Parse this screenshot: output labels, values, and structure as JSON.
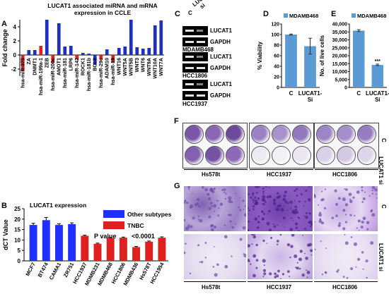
{
  "panels": {
    "A": "A",
    "B": "B",
    "C": "C",
    "D": "D",
    "E": "E",
    "F": "F",
    "G": "G"
  },
  "panelA": {
    "title_line1": "LUCAT1 associated miRNA and mRNA",
    "title_line2": "expression in CCLE",
    "ylabel": "Fold change",
    "chart_data": {
      "type": "bar",
      "ylim": [
        -3,
        5
      ],
      "yticks": [
        -2,
        0,
        2,
        4
      ],
      "categories": [
        "hsa-miR-375",
        "ZA",
        "DNMT1",
        "hsa-miR-199a-1",
        "ZEB",
        "hsa-miR-200c",
        "AMOT1",
        "hsa-miR-181",
        "LRP6",
        "hsa-miR-142",
        "ROCK1",
        "hsa-miR-181b",
        "BCL2",
        "hsa-miR-29c",
        "ADAM10",
        "hsa-miR-19",
        "WNT16",
        "WNT5A",
        "WNT5B",
        "WNT3",
        "WNT6",
        "WNT9A",
        "WNT10A",
        "WNT7A"
      ],
      "values": [
        -2.3,
        0.7,
        0.7,
        1.3,
        5.0,
        -1.1,
        4.5,
        1.2,
        1.3,
        -0.6,
        0.3,
        0.2,
        -1.4,
        -0.6,
        0.8,
        -1.1,
        1.0,
        1.2,
        5.0,
        1.1,
        0.9,
        1.0,
        4.2,
        4.9
      ],
      "colors": [
        "#e02020",
        "#1f2fbf",
        "#1f2fbf",
        "#e02020",
        "#1f2fbf",
        "#e02020",
        "#1f2fbf",
        "#1f2fbf",
        "#1f2fbf",
        "#e02020",
        "#1f2fbf",
        "#1f2fbf",
        "#1f2fbf",
        "#e02020",
        "#1f2fbf",
        "#e02020",
        "#1f2fbf",
        "#1f2fbf",
        "#1f2fbf",
        "#1f2fbf",
        "#1f2fbf",
        "#1f2fbf",
        "#1f2fbf",
        "#1f2fbf"
      ]
    }
  },
  "panelB": {
    "title": "LUCAT1 expression",
    "ylabel": "dCT Value",
    "annotation_p": "P value",
    "annotation_val": "<0.0001",
    "chart_data": {
      "type": "bar",
      "ylim": [
        0,
        25
      ],
      "yticks": [
        0,
        5,
        10,
        15,
        20,
        25
      ],
      "categories": [
        "MCF7",
        "BT474",
        "CAMA1",
        "ZR751",
        "HCC1937",
        "MDMB231",
        "MDMB468",
        "HCC1806",
        "MDMB436",
        "Hs578T",
        "HCC1954"
      ],
      "values": [
        17.2,
        19.5,
        17.2,
        17.6,
        12.0,
        8.2,
        10.9,
        11.1,
        6.6,
        9.2,
        11.1
      ],
      "errors": [
        0.8,
        1.3,
        0.6,
        0.6,
        0.3,
        0.3,
        0.3,
        0.3,
        0.3,
        0.3,
        0.4
      ],
      "colors": [
        "#1f2fff",
        "#1f2fff",
        "#1f2fff",
        "#1f2fff",
        "#e02020",
        "#e02020",
        "#e02020",
        "#e02020",
        "#e02020",
        "#e02020",
        "#e02020"
      ],
      "legend": [
        {
          "name": "Other subtypes",
          "color": "#1f2fff"
        },
        {
          "name": "TNBC",
          "color": "#e02020"
        }
      ]
    }
  },
  "panelC": {
    "col_c": "C",
    "col_si_1": "LUCAT1",
    "col_si_2": "si",
    "rows": [
      {
        "label": "LUCAT1"
      },
      {
        "label": "GAPDH"
      },
      {
        "label": "LUCAT1"
      },
      {
        "label": "GAPDH"
      },
      {
        "label": "LUCAT1"
      },
      {
        "label": "GAPDH"
      }
    ],
    "cell_lines": [
      "MDAMB468",
      "HCC1806",
      "HCC1937"
    ]
  },
  "panelD": {
    "legend": "MDAMB468",
    "ylabel": "% Viability",
    "chart_data": {
      "type": "bar",
      "categories": [
        "C",
        "LUCAT1-Si"
      ],
      "values": [
        100,
        78
      ],
      "errors": [
        1,
        15
      ],
      "ylim": [
        0,
        120
      ],
      "yticks": [
        0,
        20,
        40,
        60,
        80,
        100,
        120
      ],
      "color": "#5b9bd5"
    }
  },
  "panelE": {
    "legend": "MDAMB468",
    "ylabel": "No. of live cells",
    "significance": "***",
    "chart_data": {
      "type": "bar",
      "categories": [
        "C",
        "LUCAT1-Si"
      ],
      "values": [
        35800,
        14200
      ],
      "errors": [
        600,
        500
      ],
      "ylim": [
        0,
        40000
      ],
      "yticks": [
        0,
        5000,
        10000,
        15000,
        20000,
        25000,
        30000,
        35000,
        40000
      ],
      "ytick_labels": [
        "0",
        "5,000",
        "10,000",
        "15,000",
        "20,000",
        "25,000",
        "30,000",
        "35,000",
        "40,000"
      ],
      "color": "#5b9bd5"
    }
  },
  "panelF": {
    "side_c": "C",
    "side_si": "LUCAT1 si",
    "lines": [
      "Hs578t",
      "HCC1937",
      "HCC1806"
    ]
  },
  "panelG": {
    "side_c": "C",
    "side_si": "LUCAT1 si",
    "lines": [
      "Hs578t",
      "HCC1937",
      "HCC1806"
    ]
  }
}
